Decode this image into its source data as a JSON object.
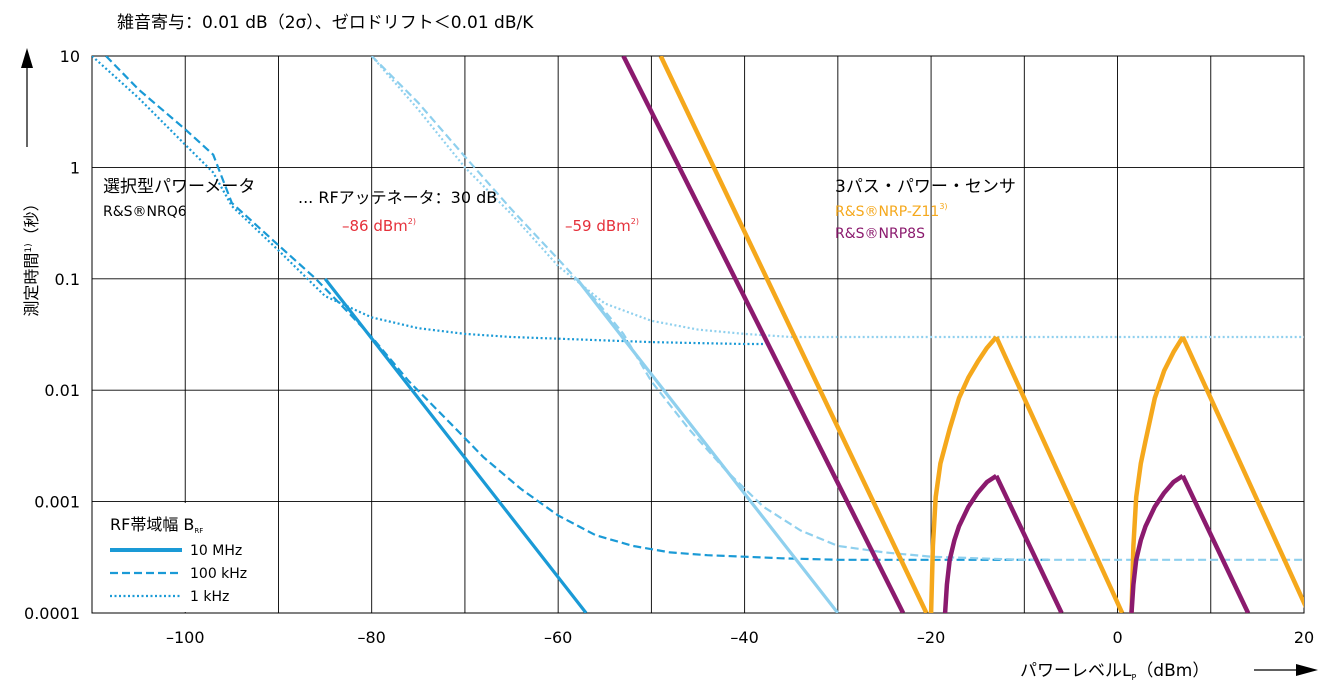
{
  "chart_data": {
    "type": "line",
    "title": "雑音寄与：0.01 dB（2σ）、ゼロドリフト＜0.01 dB/K",
    "xlabel": "パワーレベルL",
    "xlabel_sub": "P",
    "xlabel_unit": "（dBm）",
    "ylabel": "測定時間",
    "ylabel_sup": "1)",
    "ylabel_unit": "（秒）",
    "x_scale": "linear",
    "y_scale": "log",
    "xlim": [
      -110,
      20
    ],
    "ylim": [
      0.0001,
      10
    ],
    "grid": true,
    "x_ticks": [
      -100,
      -80,
      -60,
      -40,
      -20,
      0,
      20
    ],
    "x_tick_labels": [
      "–100",
      "–80",
      "–60",
      "–40",
      "–20",
      "0",
      "20"
    ],
    "y_ticks": [
      10,
      1,
      0.1,
      0.01,
      0.001,
      0.0001
    ],
    "y_tick_labels": [
      "10",
      "1",
      "0.1",
      "0.01",
      "0.001",
      "0.0001"
    ],
    "legend": {
      "title": "RF帯域幅 B",
      "title_sub": "RF",
      "placement": "bottom-left",
      "entries": [
        {
          "label": "10 MHz",
          "style": "solid"
        },
        {
          "label": "100 kHz",
          "style": "dashed"
        },
        {
          "label": "1 kHz",
          "style": "dotted"
        }
      ]
    },
    "annotations": {
      "nrq6_title": "選択型パワーメータ",
      "nrq6_model": "R&S®NRQ6",
      "attenuator": "... RFアッテネータ：30 dB",
      "marker_a_value": "–86 dBm",
      "marker_a_sup": "2)",
      "marker_b_value": "–59 dBm",
      "marker_b_sup": "2)",
      "sensor_title": "3パス・パワー・センサ",
      "sensor_z11": "R&S®NRP-Z11",
      "sensor_z11_sup": "3)",
      "sensor_nrp8s": "R&S®NRP8S"
    },
    "colors": {
      "nrq6": "#1a9ad6",
      "nrq6_attenuator": "#8fd0ee",
      "z11": "#f5a81c",
      "nrp8s": "#8b1a6e",
      "marker_text": "#e5303a",
      "grid": "#000000"
    },
    "series": [
      {
        "group": "nrq6",
        "style": "solid",
        "x": [
          -85,
          -57
        ],
        "y": [
          0.1,
          0.0001
        ]
      },
      {
        "group": "nrq6",
        "style": "dashed",
        "x": [
          -108.5,
          -105,
          -100,
          -97,
          -95,
          -90,
          -86,
          -83,
          -80,
          -76,
          -72,
          -68,
          -64,
          -60,
          -56,
          -52,
          -48,
          -44,
          -40,
          -36,
          -30,
          -20,
          -10,
          -7
        ],
        "y": [
          10,
          5,
          2.2,
          1.3,
          0.48,
          0.2,
          0.1,
          0.055,
          0.03,
          0.012,
          0.0055,
          0.0025,
          0.0013,
          0.00075,
          0.0005,
          0.0004,
          0.00035,
          0.00033,
          0.00032,
          0.00031,
          0.0003,
          0.0003,
          0.0003,
          0.0003
        ]
      },
      {
        "group": "nrq6",
        "style": "dotted",
        "x": [
          -110,
          -105,
          -100,
          -97,
          -95,
          -90,
          -85,
          -80,
          -75,
          -70,
          -65,
          -60,
          -55,
          -50,
          -45,
          -40,
          -38
        ],
        "y": [
          10,
          4.2,
          1.6,
          0.9,
          0.45,
          0.18,
          0.07,
          0.045,
          0.036,
          0.032,
          0.03,
          0.029,
          0.028,
          0.027,
          0.0265,
          0.026,
          0.026
        ]
      },
      {
        "group": "nrq6_attenuator",
        "style": "solid",
        "x": [
          -58,
          -30
        ],
        "y": [
          0.1,
          0.0001
        ]
      },
      {
        "group": "nrq6_attenuator",
        "style": "dashed",
        "x": [
          -80,
          -75,
          -70,
          -65,
          -60,
          -56,
          -53,
          -50,
          -46,
          -42,
          -38,
          -34,
          -30,
          -25,
          -20,
          -15,
          -10,
          0,
          10,
          20
        ],
        "y": [
          10,
          3.8,
          1.25,
          0.42,
          0.15,
          0.065,
          0.032,
          0.012,
          0.0045,
          0.0019,
          0.0009,
          0.00055,
          0.0004,
          0.00035,
          0.00032,
          0.00031,
          0.0003,
          0.0003,
          0.0003,
          0.0003
        ]
      },
      {
        "group": "nrq6_attenuator",
        "style": "dotted",
        "x": [
          -80,
          -75,
          -70,
          -65,
          -60,
          -55,
          -50,
          -45,
          -40,
          -35,
          -30,
          -20,
          -10,
          0,
          10,
          20
        ],
        "y": [
          10,
          3.3,
          1.0,
          0.38,
          0.13,
          0.06,
          0.042,
          0.035,
          0.032,
          0.03,
          0.03,
          0.03,
          0.03,
          0.03,
          0.03,
          0.03
        ]
      },
      {
        "group": "z11",
        "style": "solid",
        "x": [
          -49,
          -20.5
        ],
        "y": [
          10,
          0.0001
        ]
      },
      {
        "group": "z11",
        "style": "solid",
        "x": [
          -20,
          -19.8,
          -19.5,
          -19,
          -18,
          -17,
          -16,
          -15,
          -14,
          -13
        ],
        "y": [
          0.0001,
          0.0004,
          0.0011,
          0.0022,
          0.0045,
          0.0085,
          0.013,
          0.018,
          0.024,
          0.03
        ]
      },
      {
        "group": "z11",
        "style": "solid",
        "x": [
          -13,
          0.5
        ],
        "y": [
          0.03,
          0.0001
        ]
      },
      {
        "group": "z11",
        "style": "solid",
        "x": [
          1.5,
          1.7,
          2,
          2.5,
          3,
          4,
          5,
          6,
          7
        ],
        "y": [
          0.0001,
          0.0004,
          0.0011,
          0.0022,
          0.0035,
          0.0085,
          0.015,
          0.022,
          0.03
        ]
      },
      {
        "group": "z11",
        "style": "solid",
        "x": [
          7,
          20.5
        ],
        "y": [
          0.03,
          0.0001
        ]
      },
      {
        "group": "nrp8s",
        "style": "solid",
        "x": [
          -53,
          -23
        ],
        "y": [
          10,
          0.0001
        ]
      },
      {
        "group": "nrp8s",
        "style": "solid",
        "x": [
          -18.5,
          -18.3,
          -18,
          -17.5,
          -17,
          -16,
          -15,
          -14,
          -13
        ],
        "y": [
          0.0001,
          0.00018,
          0.0003,
          0.00045,
          0.0006,
          0.0009,
          0.0012,
          0.0015,
          0.0017
        ]
      },
      {
        "group": "nrp8s",
        "style": "solid",
        "x": [
          -13,
          -6
        ],
        "y": [
          0.0017,
          0.0001
        ]
      },
      {
        "group": "nrp8s",
        "style": "solid",
        "x": [
          1.5,
          1.7,
          2,
          2.5,
          3,
          4,
          5,
          6,
          7
        ],
        "y": [
          0.0001,
          0.00018,
          0.0003,
          0.00045,
          0.0006,
          0.0009,
          0.0012,
          0.0015,
          0.0017
        ]
      },
      {
        "group": "nrp8s",
        "style": "solid",
        "x": [
          7,
          14
        ],
        "y": [
          0.0017,
          0.0001
        ]
      }
    ]
  }
}
